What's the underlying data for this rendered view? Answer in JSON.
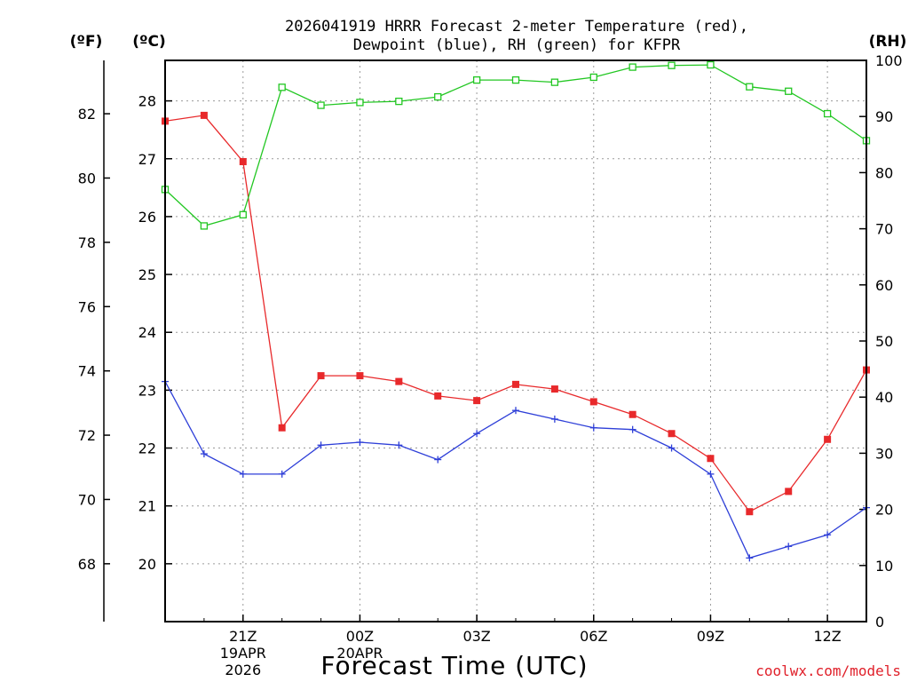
{
  "chart_data": {
    "type": "line",
    "title_line1": "2026041919 HRRR Forecast 2-meter Temperature (red),",
    "title_line2": "Dewpoint (blue), RH (green) for KFPR",
    "xlabel": "Forecast Time (UTC)",
    "credit": "coolwx.com/models",
    "units": {
      "fahrenheit": "(ºF)",
      "celsius": "(ºC)",
      "rh": "(RH)"
    },
    "x_range": [
      19,
      37
    ],
    "celsius_range": [
      19.0,
      28.7
    ],
    "rh_range": [
      0,
      100
    ],
    "x_ticks": [
      {
        "x": 21,
        "label": "21Z",
        "sub1": "19APR",
        "sub2": "2026"
      },
      {
        "x": 24,
        "label": "00Z",
        "sub1": "20APR",
        "sub2": ""
      },
      {
        "x": 27,
        "label": "03Z",
        "sub1": "",
        "sub2": ""
      },
      {
        "x": 30,
        "label": "06Z",
        "sub1": "",
        "sub2": ""
      },
      {
        "x": 33,
        "label": "09Z",
        "sub1": "",
        "sub2": ""
      },
      {
        "x": 36,
        "label": "12Z",
        "sub1": "",
        "sub2": ""
      }
    ],
    "celsius_ticks": [
      20,
      21,
      22,
      23,
      24,
      25,
      26,
      27,
      28
    ],
    "fahrenheit_ticks": [
      68,
      70,
      72,
      74,
      76,
      78,
      80,
      82
    ],
    "rh_ticks": [
      0,
      10,
      20,
      30,
      40,
      50,
      60,
      70,
      80,
      90,
      100
    ],
    "x": [
      19,
      20,
      21,
      22,
      23,
      24,
      25,
      26,
      27,
      28,
      29,
      30,
      31,
      32,
      33,
      34,
      35,
      36,
      37
    ],
    "series": [
      {
        "name": "Temperature",
        "axis": "celsius",
        "color": "#e8292b",
        "marker": "filled-square",
        "values": [
          27.65,
          27.75,
          26.95,
          22.35,
          23.25,
          23.25,
          23.15,
          22.9,
          22.82,
          23.1,
          23.02,
          22.8,
          22.58,
          22.25,
          21.82,
          20.9,
          21.25,
          22.15,
          23.35
        ]
      },
      {
        "name": "Dewpoint",
        "axis": "celsius",
        "color": "#2e3fd8",
        "marker": "plus",
        "values": [
          23.15,
          21.9,
          21.55,
          21.55,
          22.05,
          22.1,
          22.05,
          21.8,
          22.25,
          22.65,
          22.5,
          22.35,
          22.32,
          22.0,
          21.55,
          20.1,
          20.3,
          20.5,
          20.97
        ]
      },
      {
        "name": "RH",
        "axis": "rh",
        "color": "#22c722",
        "marker": "open-square",
        "values": [
          77,
          70.5,
          72.5,
          95.2,
          92.0,
          92.5,
          92.7,
          93.5,
          96.5,
          96.5,
          96.1,
          97.0,
          98.8,
          99.1,
          99.2,
          95.3,
          94.5,
          90.5,
          85.7
        ]
      }
    ]
  }
}
